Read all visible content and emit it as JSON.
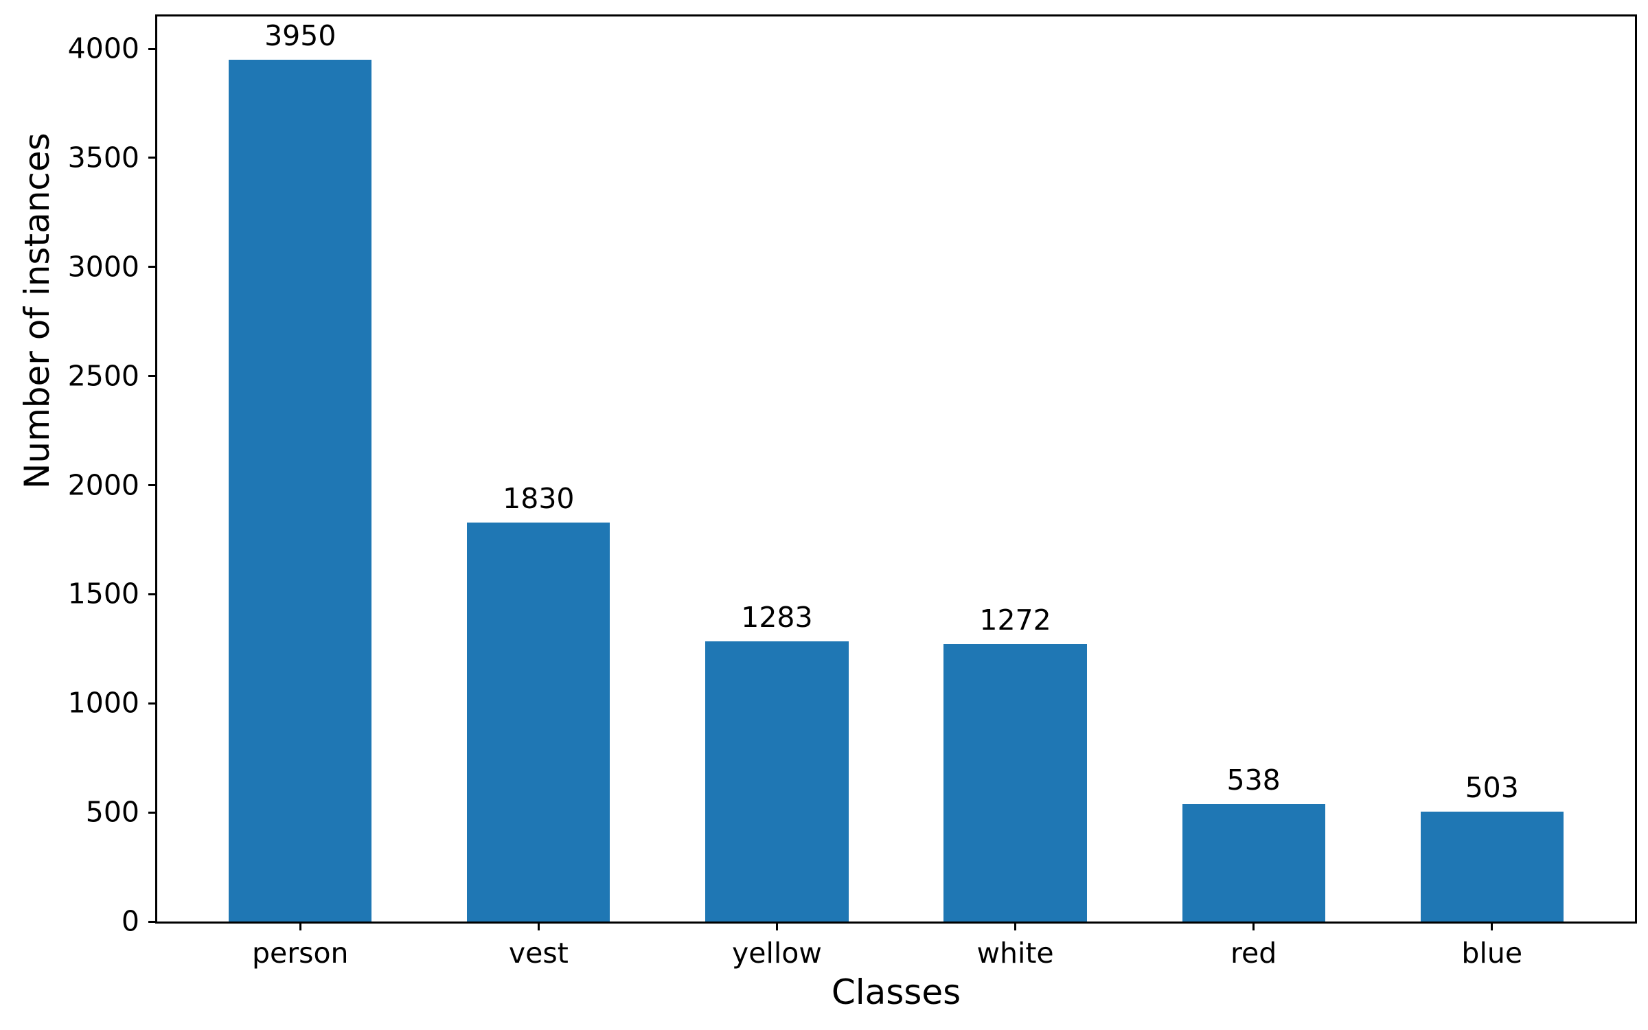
{
  "chart_data": {
    "type": "bar",
    "title": "",
    "categories": [
      "person",
      "vest",
      "yellow",
      "white",
      "red",
      "blue"
    ],
    "values": [
      3950,
      1830,
      1283,
      1272,
      538,
      503
    ],
    "bar_labels": [
      "3950",
      "1830",
      "1283",
      "1272",
      "538",
      "503"
    ],
    "xlabel": "Classes",
    "ylabel": "Number of instances",
    "yticks": [
      0,
      500,
      1000,
      1500,
      2000,
      2500,
      3000,
      3500,
      4000
    ],
    "ylim": [
      0,
      4148
    ],
    "bar_color": "#1f77b4",
    "grid": "off",
    "legend": "none"
  }
}
